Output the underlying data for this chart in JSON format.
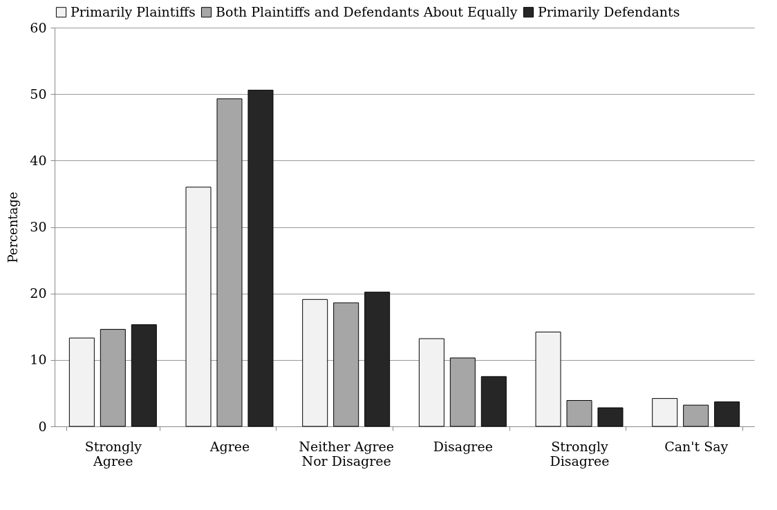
{
  "chart_data": {
    "type": "bar",
    "ylabel": "Percentage",
    "categories": [
      "Strongly Agree",
      "Agree",
      "Neither Agree Nor Disagree",
      "Disagree",
      "Strongly Disagree",
      "Can't Say"
    ],
    "series": [
      {
        "name": "Primarily Plaintiffs",
        "color": "#f2f2f2",
        "values": [
          13.3,
          36.0,
          19.1,
          13.2,
          14.2,
          4.2
        ]
      },
      {
        "name": "Both Plaintiffs and Defendants About Equally",
        "color": "#a6a6a6",
        "values": [
          14.6,
          49.3,
          18.6,
          10.3,
          3.9,
          3.2
        ]
      },
      {
        "name": "Primarily Defendants",
        "color": "#262626",
        "values": [
          15.3,
          50.6,
          20.2,
          7.5,
          2.8,
          3.7
        ]
      }
    ],
    "ylim": [
      0,
      60
    ],
    "yticks": [
      0,
      10,
      20,
      30,
      40,
      50,
      60
    ],
    "grid": "y",
    "legend": "top"
  }
}
